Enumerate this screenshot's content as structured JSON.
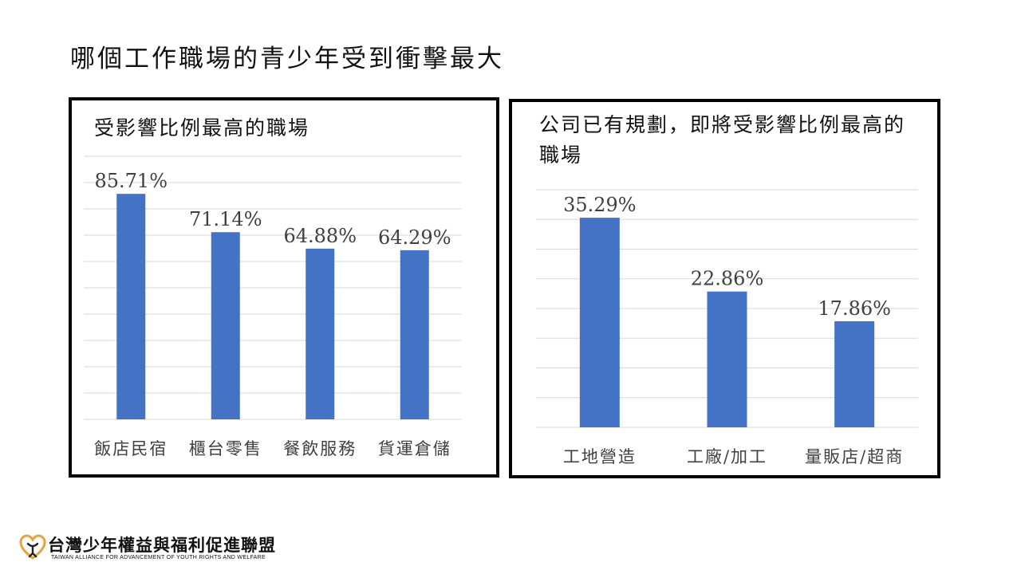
{
  "slide": {
    "title": "哪個工作職場的青少年受到衝擊最大"
  },
  "footer": {
    "org_name": "台灣少年權益與福利促進聯盟",
    "org_en": "TAIWAN ALLIANCE FOR ADVANCEMENT OF YOUTH RIGHTS AND WELFARE",
    "logo_colors": [
      "#e8a33c",
      "#222222"
    ]
  },
  "chart_data": [
    {
      "type": "bar",
      "title": "受影響比例最高的職場",
      "categories": [
        "飯店民宿",
        "櫃台零售",
        "餐飲服務",
        "貨運倉儲"
      ],
      "values": [
        85.71,
        71.14,
        64.88,
        64.29
      ],
      "labels": [
        "85.71%",
        "71.14%",
        "64.88%",
        "64.29%"
      ],
      "ylim": [
        0,
        100
      ],
      "grid": true,
      "bar_color": "#4472c4"
    },
    {
      "type": "bar",
      "title": "公司已有規劃，即將受影響比例最高的職場",
      "categories": [
        "工地營造",
        "工廠/加工",
        "量販店/超商"
      ],
      "values": [
        35.29,
        22.86,
        17.86
      ],
      "labels": [
        "35.29%",
        "22.86%",
        "17.86%"
      ],
      "ylim": [
        0,
        40
      ],
      "grid": true,
      "bar_color": "#4472c4"
    }
  ]
}
